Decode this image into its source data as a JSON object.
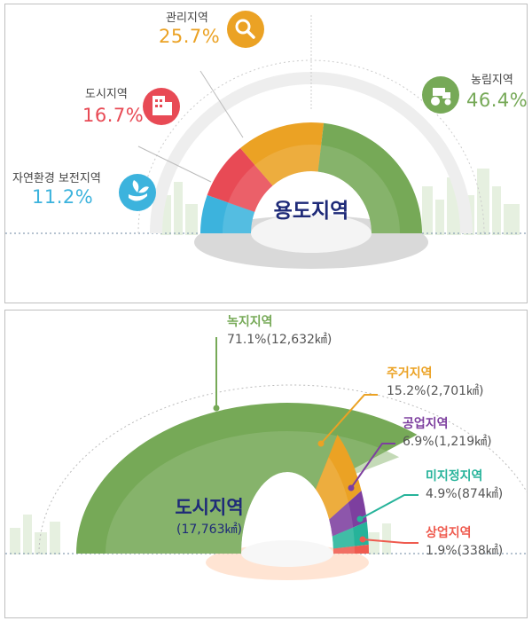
{
  "colors": {
    "green": "#76a957",
    "orange": "#eba224",
    "red": "#e84a55",
    "blue": "#3cb3dd",
    "purple": "#7d3f9f",
    "teal": "#26b39a",
    "coral": "#ef5b4f",
    "navy": "#1e2a78"
  },
  "chart_data": [
    {
      "type": "pie",
      "title": "용도지역",
      "segments": [
        {
          "name": "자연환경 보전지역",
          "value": 11.2,
          "label": "11.2%",
          "color": "#3cb3dd",
          "icon": "hand-leaf-icon"
        },
        {
          "name": "도시지역",
          "value": 16.7,
          "label": "16.7%",
          "color": "#e84a55",
          "icon": "building-icon"
        },
        {
          "name": "관리지역",
          "value": 25.7,
          "label": "25.7%",
          "color": "#eba224",
          "icon": "magnifier-icon"
        },
        {
          "name": "농림지역",
          "value": 46.4,
          "label": "46.4%",
          "color": "#76a957",
          "icon": "tractor-icon"
        }
      ]
    },
    {
      "type": "pie",
      "title": "도시지역",
      "subtitle": "(17,763㎢)",
      "segments": [
        {
          "name": "녹지지역",
          "value": 71.1,
          "label": "71.1%(12,632㎢)",
          "color": "#76a957"
        },
        {
          "name": "주거지역",
          "value": 15.2,
          "label": "15.2%(2,701㎢)",
          "color": "#eba224"
        },
        {
          "name": "공업지역",
          "value": 6.9,
          "label": "6.9%(1,219㎢)",
          "color": "#7d3f9f"
        },
        {
          "name": "미지정지역",
          "value": 4.9,
          "label": "4.9%(874㎢)",
          "color": "#26b39a"
        },
        {
          "name": "상업지역",
          "value": 1.9,
          "label": "1.9%(338㎢)",
          "color": "#ef5b4f"
        }
      ]
    }
  ]
}
